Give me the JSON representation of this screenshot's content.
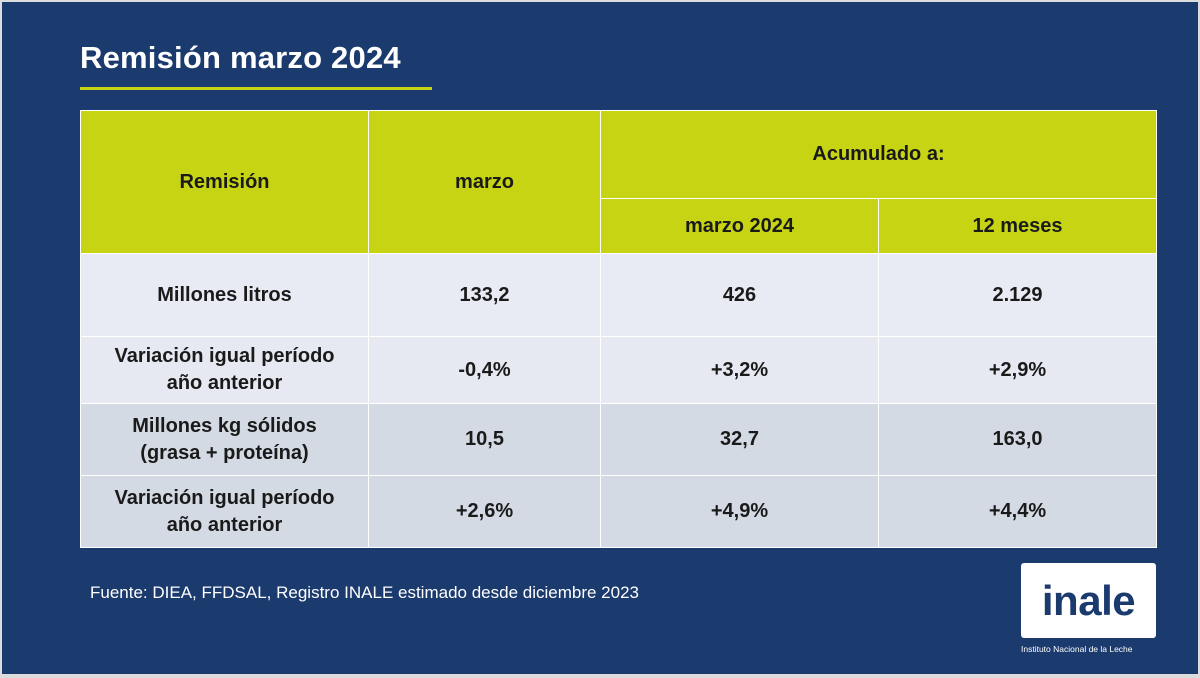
{
  "title": "Remisión marzo 2024",
  "table": {
    "header": {
      "col1": "Remisión",
      "col2": "marzo",
      "group": "Acumulado a:",
      "sub1": "marzo 2024",
      "sub2": "12 meses"
    },
    "rows": [
      {
        "label": "Millones litros",
        "values": [
          "133,2",
          "426",
          "2.129"
        ]
      },
      {
        "label": "Variación igual período año anterior",
        "values": [
          "-0,4%",
          "+3,2%",
          "+2,9%"
        ]
      },
      {
        "label": "Millones kg sólidos (grasa + proteína)",
        "values": [
          "10,5",
          "32,7",
          "163,0"
        ]
      },
      {
        "label": "Variación igual período año anterior",
        "values": [
          "+2,6%",
          "+4,9%",
          "+4,4%"
        ]
      }
    ]
  },
  "source": "Fuente: DIEA, FFDSAL, Registro INALE estimado desde diciembre 2023",
  "logo": {
    "text": "inale",
    "caption": "Instituto Nacional de la Leche"
  },
  "colors": {
    "background": "#1b3a6e",
    "accent": "#c6d414",
    "row_light": "#e8ebf4",
    "row_dark": "#d4dae4"
  }
}
